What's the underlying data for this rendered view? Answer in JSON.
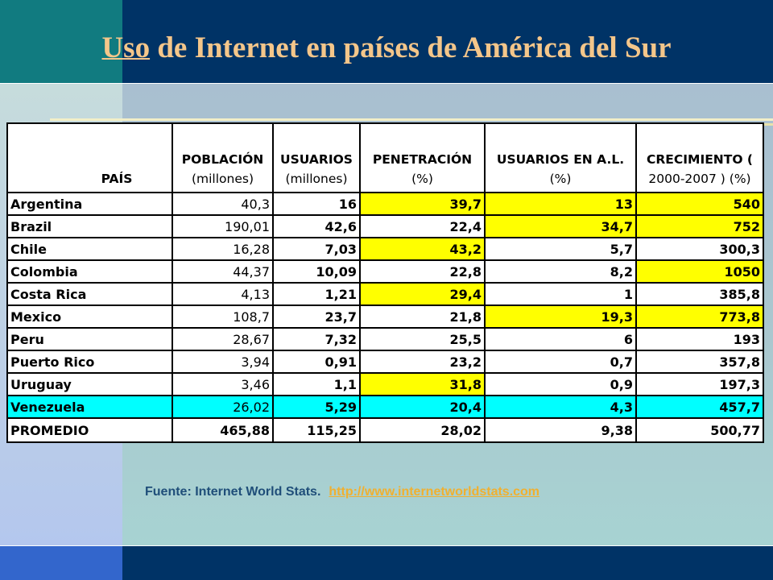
{
  "slide": {
    "title_underlined": "Uso",
    "title_rest": " de Internet en países de América del Sur"
  },
  "table": {
    "headers": [
      {
        "line1": "PAÍS",
        "line2": ""
      },
      {
        "line1": "POBLACIÓN",
        "line2": "(millones)"
      },
      {
        "line1": "USUARIOS",
        "line2": "(millones)"
      },
      {
        "line1": "PENETRACIÓN",
        "line2": "(%)"
      },
      {
        "line1": "USUARIOS EN A.L.",
        "line2": "(%)"
      },
      {
        "line1": "CRECIMIENTO (",
        "line2": "2000-2007 ) (%)"
      }
    ],
    "rows": [
      {
        "country": "Argentina",
        "poblacion": "40,3",
        "usuarios": "16",
        "penetracion": "39,7",
        "usuarios_al": "13",
        "crecimiento": "540"
      },
      {
        "country": "Brazil",
        "poblacion": "190,01",
        "usuarios": "42,6",
        "penetracion": "22,4",
        "usuarios_al": "34,7",
        "crecimiento": "752"
      },
      {
        "country": "Chile",
        "poblacion": "16,28",
        "usuarios": "7,03",
        "penetracion": "43,2",
        "usuarios_al": "5,7",
        "crecimiento": "300,3"
      },
      {
        "country": "Colombia",
        "poblacion": "44,37",
        "usuarios": "10,09",
        "penetracion": "22,8",
        "usuarios_al": "8,2",
        "crecimiento": "1050"
      },
      {
        "country": "Costa Rica",
        "poblacion": "4,13",
        "usuarios": "1,21",
        "penetracion": "29,4",
        "usuarios_al": "1",
        "crecimiento": "385,8"
      },
      {
        "country": "Mexico",
        "poblacion": "108,7",
        "usuarios": "23,7",
        "penetracion": "21,8",
        "usuarios_al": "19,3",
        "crecimiento": "773,8"
      },
      {
        "country": "Peru",
        "poblacion": "28,67",
        "usuarios": "7,32",
        "penetracion": "25,5",
        "usuarios_al": "6",
        "crecimiento": "193"
      },
      {
        "country": "Puerto Rico",
        "poblacion": "3,94",
        "usuarios": "0,91",
        "penetracion": "23,2",
        "usuarios_al": "0,7",
        "crecimiento": "357,8"
      },
      {
        "country": "Uruguay",
        "poblacion": "3,46",
        "usuarios": "1,1",
        "penetracion": "31,8",
        "usuarios_al": "0,9",
        "crecimiento": "197,3"
      },
      {
        "country": "Venezuela",
        "poblacion": "26,02",
        "usuarios": "5,29",
        "penetracion": "20,4",
        "usuarios_al": "4,3",
        "crecimiento": "457,7"
      }
    ],
    "total": {
      "country": "PROMEDIO",
      "poblacion": "465,88",
      "usuarios": "115,25",
      "penetracion": "28,02",
      "usuarios_al": "9,38",
      "crecimiento": "500,77"
    }
  },
  "source": {
    "label": "Fuente: Internet World Stats.",
    "link": "http://www.internetworldstats.com"
  },
  "colors": {
    "highlight_yellow": "#ffff00",
    "highlight_cyan": "#00ffff",
    "title_color": "#f4c68a",
    "header_band": "#003366"
  }
}
